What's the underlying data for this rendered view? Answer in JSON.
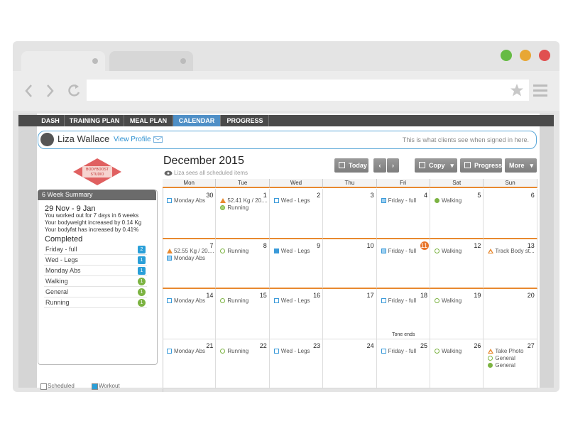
{
  "nav": [
    {
      "label": "DASH"
    },
    {
      "label": "TRAINING PLAN"
    },
    {
      "label": "MEAL PLAN"
    },
    {
      "label": "CALENDAR",
      "active": true
    },
    {
      "label": "PROGRESS"
    }
  ],
  "profile": {
    "name": "Liza Wallace",
    "link": "View Profile",
    "note": "This is what clients see when signed in here."
  },
  "logo": {
    "line1": "BODYBOOST",
    "line2": "STUDIO"
  },
  "summary": {
    "title": "6 Week Summary",
    "range": "29 Nov - 9 Jan",
    "lines": [
      "You worked out for 7 days in 6 weeks",
      "Your bodyweight increased by 0.14 Kg",
      "Your bodyfat has increased by 0.41%"
    ],
    "completed_title": "Completed",
    "completed": [
      {
        "name": "Friday - full",
        "count": 2,
        "color": "#2a9fd8"
      },
      {
        "name": "Wed - Legs",
        "count": 1,
        "color": "#2a9fd8"
      },
      {
        "name": "Monday Abs",
        "count": 1,
        "color": "#2a9fd8"
      },
      {
        "name": "Walking",
        "count": 1,
        "color": "#7cb342"
      },
      {
        "name": "General",
        "count": 1,
        "color": "#7cb342"
      },
      {
        "name": "Running",
        "count": 1,
        "color": "#7cb342"
      }
    ]
  },
  "legend": [
    "Scheduled",
    "Workout"
  ],
  "calendar": {
    "title": "December 2015",
    "subtitle": "Liza sees all scheduled items",
    "buttons": [
      "Today",
      "Copy",
      "Progress",
      "More"
    ],
    "weekdays": [
      "Mon",
      "Tue",
      "Wed",
      "Thu",
      "Fri",
      "Sat",
      "Sun"
    ],
    "weeks": [
      {
        "days": [
          {
            "day": 30,
            "events": [
              {
                "label": "Monday Abs",
                "icon": "square"
              }
            ]
          },
          {
            "day": 1,
            "events": [
              {
                "label": "52.41 Kg / 20....",
                "icon": "triangle-filled"
              },
              {
                "label": "Running",
                "icon": "circle-check"
              }
            ]
          },
          {
            "day": 2,
            "events": [
              {
                "label": "Wed - Legs",
                "icon": "square"
              }
            ]
          },
          {
            "day": 3,
            "events": []
          },
          {
            "day": 4,
            "events": [
              {
                "label": "Friday - full",
                "icon": "square-filled"
              }
            ]
          },
          {
            "day": 5,
            "events": [
              {
                "label": "Walking",
                "icon": "circle-filled"
              }
            ]
          },
          {
            "day": 6,
            "events": []
          }
        ]
      },
      {
        "days": [
          {
            "day": 7,
            "events": [
              {
                "label": "52.55 Kg / 20....",
                "icon": "triangle-filled"
              },
              {
                "label": "Monday Abs",
                "icon": "square-filled"
              }
            ]
          },
          {
            "day": 8,
            "events": [
              {
                "label": "Running",
                "icon": "circle"
              }
            ]
          },
          {
            "day": 9,
            "events": [
              {
                "label": "Wed - Legs",
                "icon": "square-check"
              }
            ]
          },
          {
            "day": 10,
            "events": []
          },
          {
            "day": 11,
            "today": true,
            "events": [
              {
                "label": "Friday - full",
                "icon": "square-filled"
              }
            ]
          },
          {
            "day": 12,
            "events": [
              {
                "label": "Walking",
                "icon": "circle"
              }
            ]
          },
          {
            "day": 13,
            "events": [
              {
                "label": "Track Body st...",
                "icon": "triangle"
              }
            ]
          }
        ]
      },
      {
        "days": [
          {
            "day": 14,
            "events": [
              {
                "label": "Monday Abs",
                "icon": "square"
              }
            ]
          },
          {
            "day": 15,
            "events": [
              {
                "label": "Running",
                "icon": "circle"
              }
            ]
          },
          {
            "day": 16,
            "events": [
              {
                "label": "Wed - Legs",
                "icon": "square"
              }
            ]
          },
          {
            "day": 17,
            "events": []
          },
          {
            "day": 18,
            "note": "Tone ends",
            "events": [
              {
                "label": "Friday - full",
                "icon": "square"
              }
            ]
          },
          {
            "day": 19,
            "events": [
              {
                "label": "Walking",
                "icon": "circle"
              }
            ]
          },
          {
            "day": 20,
            "events": []
          }
        ]
      },
      {
        "days": [
          {
            "day": 21,
            "events": [
              {
                "label": "Monday Abs",
                "icon": "square"
              }
            ]
          },
          {
            "day": 22,
            "events": [
              {
                "label": "Running",
                "icon": "circle"
              }
            ]
          },
          {
            "day": 23,
            "events": [
              {
                "label": "Wed - Legs",
                "icon": "square"
              }
            ]
          },
          {
            "day": 24,
            "events": []
          },
          {
            "day": 25,
            "events": [
              {
                "label": "Friday - full",
                "icon": "square"
              }
            ]
          },
          {
            "day": 26,
            "events": [
              {
                "label": "Walking",
                "icon": "circle"
              }
            ]
          },
          {
            "day": 27,
            "events": [
              {
                "label": "Take Photo",
                "icon": "triangle"
              },
              {
                "label": "General",
                "icon": "circle"
              },
              {
                "label": "General",
                "icon": "circle-filled"
              }
            ]
          }
        ]
      }
    ]
  }
}
